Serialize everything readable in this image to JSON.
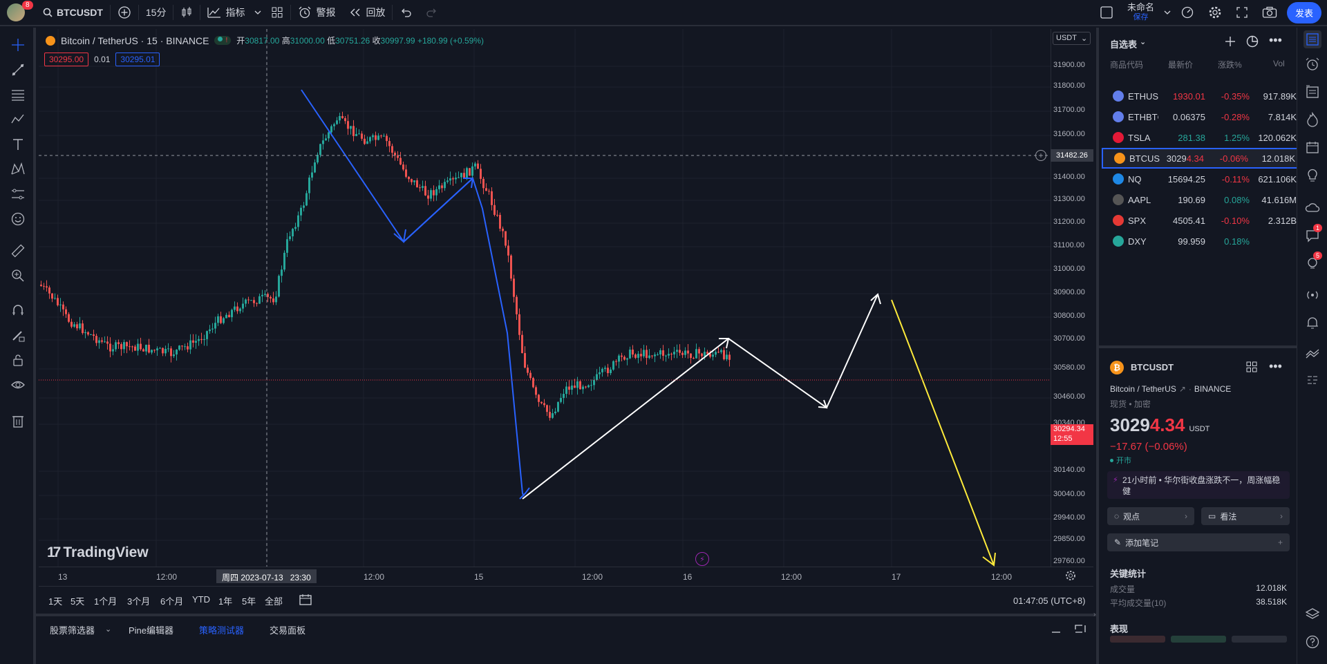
{
  "topbar": {
    "avatar_badge": "8",
    "symbol": "BTCUSDT",
    "interval": "15分",
    "indicators_label": "指标",
    "alert_label": "警报",
    "replay_label": "回放",
    "layout_name": "未命名",
    "layout_status": "保存",
    "publish_label": "发表"
  },
  "legend": {
    "title": "Bitcoin / TetherUS · 15 · BINANCE",
    "open_label": "开",
    "open": "30817.00",
    "high_label": "高",
    "high": "31000.00",
    "low_label": "低",
    "low": "30751.26",
    "close_label": "收",
    "close": "30997.99",
    "change": "+180.99 (+0.59%)",
    "sell_price": "30295.00",
    "spread": "0.01",
    "buy_price": "30295.01",
    "watermark": "TradingView"
  },
  "price_axis": {
    "currency": "USDT",
    "labels": [
      "31900.00",
      "31800.00",
      "31700.00",
      "31600.00",
      "31400.00",
      "31300.00",
      "31200.00",
      "31100.00",
      "31000.00",
      "30900.00",
      "30800.00",
      "30700.00",
      "30580.00",
      "30460.00",
      "30340.00",
      "30140.00",
      "30040.00",
      "29940.00",
      "29850.00",
      "29760.00"
    ],
    "crosshair_price": "31482.26",
    "current_price": "30294.34",
    "countdown": "12:55"
  },
  "time_axis": {
    "labels": [
      "13",
      "12:00",
      "12:00",
      "15",
      "12:00",
      "16",
      "12:00",
      "17",
      "12:00"
    ],
    "crosshair_time": "周四 2023-07-13   23:30"
  },
  "range_bar": {
    "ranges": [
      "1天",
      "5天",
      "1个月",
      "3个月",
      "6个月",
      "YTD",
      "1年",
      "5年",
      "全部"
    ],
    "clock": "01:47:05 (UTC+8)"
  },
  "bottom_tabs": [
    "股票筛选器",
    "Pine编辑器",
    "策略测试器",
    "交易面板"
  ],
  "watchlist": {
    "title": "自选表",
    "columns": {
      "symbol": "商品代码",
      "last": "最新价",
      "change": "涨跌%",
      "vol": "Vol"
    },
    "rows": [
      {
        "symbol": "ETHUSDT",
        "last": "1930.01",
        "change": "-0.35%",
        "vol": "917.89K",
        "color": "#627eea"
      },
      {
        "symbol": "ETHBTC",
        "last": "0.06375",
        "change": "-0.28%",
        "vol": "7.814K",
        "color": "#627eea"
      },
      {
        "symbol": "TSLA",
        "last": "281.38",
        "change": "1.25%",
        "vol": "120.062K",
        "color": "#e31937"
      },
      {
        "symbol": "BTCUSDT",
        "last_a": "3029",
        "last_b": "4.34",
        "change": "-0.06%",
        "vol": "12.018K",
        "color": "#f7931a"
      },
      {
        "symbol": "NQ",
        "last": "15694.25",
        "change": "-0.11%",
        "vol": "621.106K",
        "color": "#1e88e5"
      },
      {
        "symbol": "AAPL",
        "last": "190.69",
        "change": "0.08%",
        "vol": "41.616M",
        "color": "#555"
      },
      {
        "symbol": "SPX",
        "last": "4505.41",
        "change": "-0.10%",
        "vol": "2.312B",
        "color": "#e53935"
      },
      {
        "symbol": "DXY",
        "last": "99.959",
        "change": "0.18%",
        "vol": "",
        "color": "#26a69a"
      }
    ]
  },
  "details": {
    "symbol": "BTCUSDT",
    "name": "Bitcoin / TetherUS",
    "exchange": "BINANCE",
    "type": "现货 • 加密",
    "price_main": "3029",
    "price_tail": "4.34",
    "price_unit": "USDT",
    "change": "−17.67 (−0.06%)",
    "market_status": "开市",
    "news": "21小时前 • 华尔街收盘涨跌不一，周涨幅稳健",
    "ideas_btn": "观点",
    "minds_btn": "看法",
    "note_btn": "添加笔记",
    "key_stats_title": "关键统计",
    "volume_label": "成交量",
    "volume_value": "12.018K",
    "avg_volume_label": "平均成交量(10)",
    "avg_volume_value": "38.518K",
    "performance_title": "表现"
  },
  "rightbar_badges": {
    "chat": "1",
    "ideas": "5"
  }
}
